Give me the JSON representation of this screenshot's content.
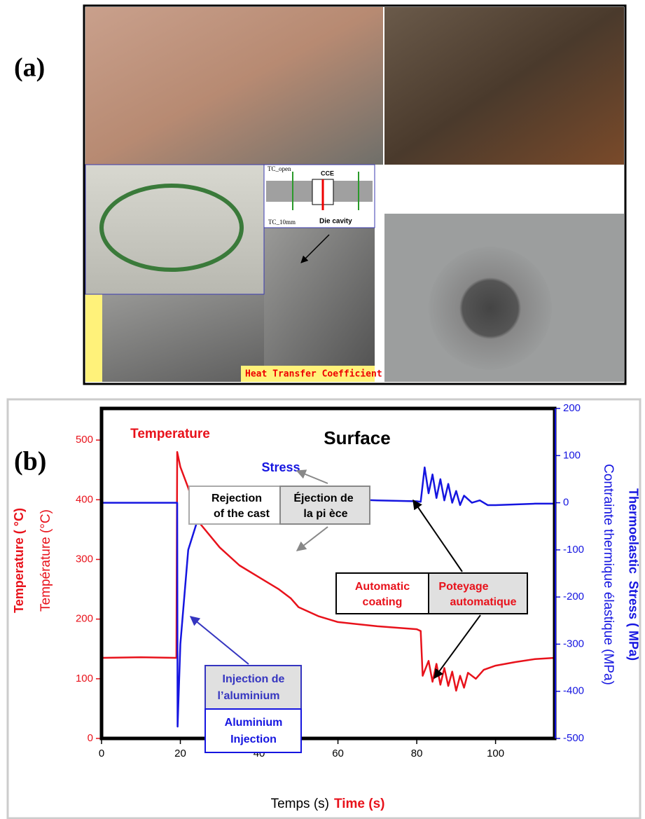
{
  "panel_a": {
    "label": "(a)",
    "diagram": {
      "tc_open": "TC_open",
      "cce": "CCE",
      "tc_10mm": "TC_10mm",
      "die_cavity": "Die cavity"
    },
    "caption": "Heat Transfer Coefficient"
  },
  "chart_data": {
    "type": "line",
    "panel_label": "(b)",
    "title": "Surface",
    "xlim": [
      0,
      115
    ],
    "xticks": [
      0,
      20,
      40,
      60,
      80,
      100
    ],
    "ylim": [
      0,
      553
    ],
    "yticks": [
      0,
      100,
      200,
      300,
      400,
      500
    ],
    "y2lim": [
      -500,
      200
    ],
    "y2ticks": [
      -500,
      -400,
      -300,
      -200,
      -100,
      0,
      100,
      200
    ],
    "xlabel": "Temps (s)",
    "xlabel_en": "Time (s)",
    "ylabel": "Température (°C)",
    "ylabel_en": "Temperature ( °C)",
    "y2label": "Contrainte thermique élastique (MPa)",
    "y2label_en": "Thermoelastic  Stress ( MPa)",
    "series": [
      {
        "name": "Temperature",
        "color": "#e8121b",
        "x": [
          0,
          10,
          19,
          19.2,
          20,
          22,
          25,
          30,
          35,
          40,
          45,
          48,
          50,
          55,
          60,
          70,
          80,
          81,
          81.5,
          83,
          84,
          85,
          86,
          87,
          88,
          89,
          90,
          91,
          92,
          93,
          95,
          97,
          100,
          105,
          110,
          115
        ],
        "values": [
          135,
          136,
          135,
          480,
          455,
          420,
          360,
          320,
          290,
          270,
          250,
          235,
          220,
          205,
          195,
          188,
          183,
          180,
          105,
          130,
          95,
          125,
          90,
          118,
          88,
          112,
          80,
          105,
          85,
          110,
          100,
          115,
          122,
          128,
          133,
          135
        ]
      },
      {
        "name": "Stress",
        "color": "#1515e0",
        "axis": "y2",
        "x": [
          0,
          10,
          19,
          19.2,
          19.3,
          20,
          22,
          25,
          28,
          30,
          40,
          48,
          50,
          60,
          70,
          80,
          81,
          82,
          83,
          84,
          85,
          86,
          87,
          88,
          89,
          90,
          91,
          92,
          94,
          96,
          98,
          100,
          110,
          115
        ],
        "values": [
          0,
          0,
          0,
          0,
          -475,
          -300,
          -100,
          -20,
          5,
          10,
          8,
          8,
          10,
          8,
          5,
          3,
          2,
          75,
          20,
          60,
          10,
          50,
          5,
          40,
          0,
          25,
          -5,
          15,
          0,
          5,
          -5,
          -5,
          -2,
          -2
        ]
      }
    ],
    "annotations": {
      "rejection": [
        "Rejection",
        "of the cast"
      ],
      "ejection": [
        "Éjection de",
        "la pi èce"
      ],
      "automatic_coating": [
        "Automatic",
        "coating"
      ],
      "poteyage": [
        "Poteyage",
        "automatique"
      ],
      "injection_fr": [
        "Injection de",
        "l’aluminium"
      ],
      "injection_en": [
        "Aluminium",
        "Injection"
      ]
    }
  }
}
